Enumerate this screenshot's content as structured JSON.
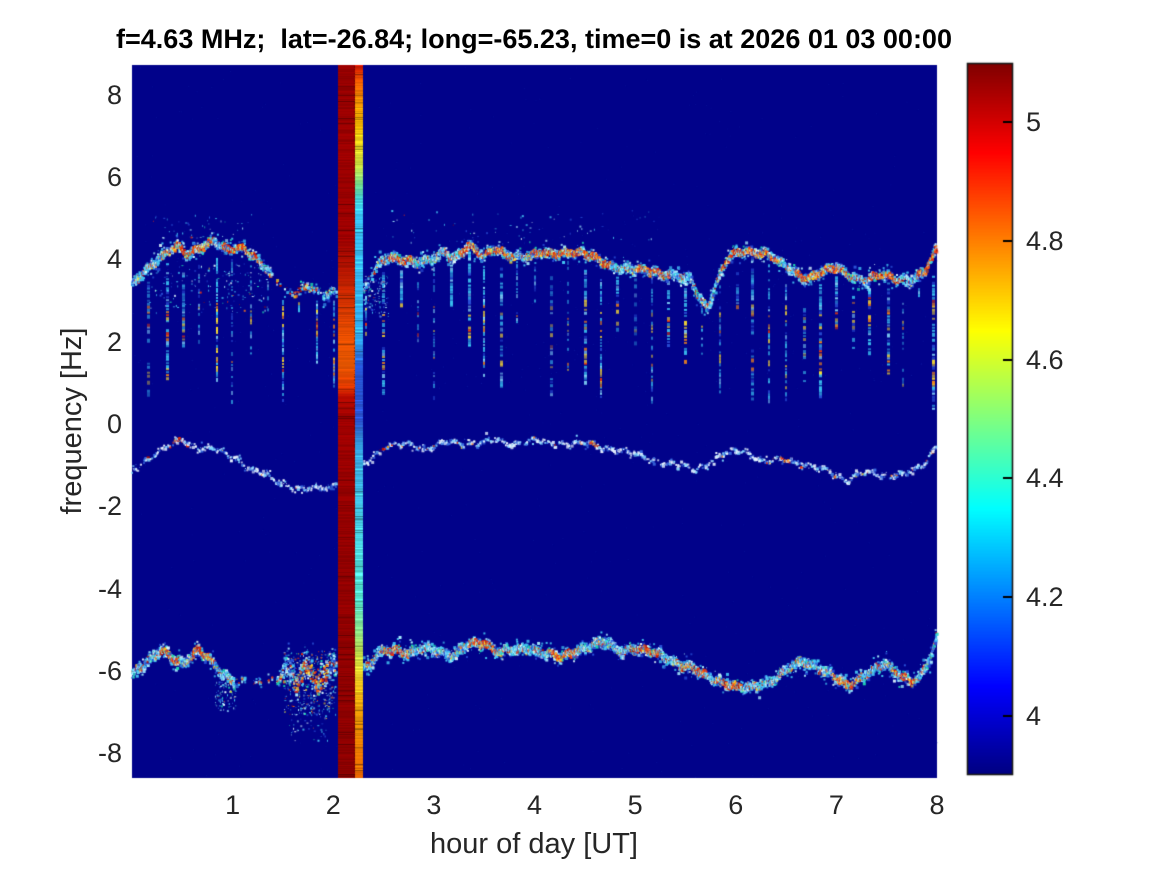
{
  "chart_data": {
    "type": "heatmap",
    "title": "f=4.63 MHz;  lat=-26.84; long=-65.23, time=0 is at 2026 01 03 00:00",
    "xlabel": "hour of day [UT]",
    "ylabel": "frequency [Hz]",
    "xlim": [
      0,
      8
    ],
    "ylim": [
      -8.6,
      8.72
    ],
    "xticks": {
      "values": [
        1,
        2,
        3,
        4,
        5,
        6,
        7,
        8
      ],
      "labels": [
        "1",
        "2",
        "3",
        "4",
        "5",
        "6",
        "7",
        "8"
      ]
    },
    "yticks": {
      "values": [
        8,
        6,
        4,
        2,
        0,
        -2,
        -4,
        -6,
        -8
      ],
      "labels": [
        "8",
        "6",
        "4",
        "2",
        "0",
        "-2",
        "-4",
        "-6",
        "-8"
      ]
    },
    "grid": false,
    "legend": null,
    "colormap": "jet",
    "background_value_color": "#01028A",
    "colorbar": {
      "position": "right",
      "range": [
        3.9,
        5.1
      ],
      "ticks": {
        "values": [
          4,
          4.2,
          4.4,
          4.6,
          4.8,
          5
        ],
        "labels": [
          "4",
          "4.2",
          "4.4",
          "4.6",
          "4.8",
          "5"
        ]
      }
    },
    "palettes": {
      "trace_hot": [
        [
          "#E83010",
          0.38
        ],
        [
          "#FF7718",
          0.28
        ],
        [
          "#B01000",
          0.14
        ],
        [
          "#FFD820",
          0.2
        ]
      ],
      "trace_cool": [
        [
          "#45C8F5",
          0.42
        ],
        [
          "#A8EEFF",
          0.18
        ],
        [
          "#2A52D8",
          0.22
        ],
        [
          "#20E0B0",
          0.07
        ],
        [
          "#E0FAFF",
          0.11
        ]
      ],
      "middle_cool": [
        [
          "#E8F4FF",
          0.45
        ],
        [
          "#3A6CE0",
          0.3
        ],
        [
          "#7FD8FF",
          0.25
        ]
      ]
    },
    "features": {
      "interference_stripe": {
        "x_hours": [
          2.043,
          2.291
        ],
        "wide_part": {
          "x_hours": [
            2.043,
            2.212
          ],
          "stops": [
            [
              0,
              "#960000"
            ],
            [
              0.24,
              "#9E0000"
            ],
            [
              0.285,
              "#B41400"
            ],
            [
              0.33,
              "#D03000"
            ],
            [
              0.375,
              "#E84E00"
            ],
            [
              0.42,
              "#F05A00"
            ],
            [
              0.45,
              "#E43C00"
            ],
            [
              0.465,
              "#B40A00"
            ],
            [
              0.5,
              "#A00000"
            ],
            [
              0.56,
              "#980000"
            ],
            [
              1,
              "#8E0000"
            ]
          ]
        },
        "narrow_part": {
          "x_hours": [
            2.212,
            2.291
          ],
          "stops": [
            [
              0,
              "#C81400"
            ],
            [
              0.021,
              "#F05800"
            ],
            [
              0.049,
              "#F08C00"
            ],
            [
              0.084,
              "#F0B400"
            ],
            [
              0.112,
              "#F0DC20"
            ],
            [
              0.14,
              "#C8E040"
            ],
            [
              0.168,
              "#70DC90"
            ],
            [
              0.189,
              "#40CCD8"
            ],
            [
              0.21,
              "#38C0F0"
            ],
            [
              0.386,
              "#30A8F0"
            ],
            [
              0.421,
              "#2656D4"
            ],
            [
              0.498,
              "#2850C8"
            ],
            [
              0.533,
              "#34A0E0"
            ],
            [
              0.638,
              "#46CCE6"
            ],
            [
              0.75,
              "#52E0C8"
            ],
            [
              0.792,
              "#8CE68C"
            ],
            [
              0.827,
              "#C4DC46"
            ],
            [
              0.863,
              "#ECC61E"
            ],
            [
              0.905,
              "#EE9E06"
            ],
            [
              0.954,
              "#EC8000"
            ],
            [
              1,
              "#E06000"
            ]
          ]
        }
      },
      "upper_trace": {
        "density": 2.7,
        "spread": 0.16,
        "base_hot": 0.32,
        "cool": "trace_cool",
        "hotp": "trace_hot",
        "points": [
          [
            0,
            3.35
          ],
          [
            0.12,
            3.7
          ],
          [
            0.3,
            4.1
          ],
          [
            0.45,
            4.3
          ],
          [
            0.55,
            4.1
          ],
          [
            0.7,
            4.35
          ],
          [
            0.8,
            4.45
          ],
          [
            0.95,
            4.2
          ],
          [
            1.1,
            4.3
          ],
          [
            1.25,
            4.0
          ],
          [
            1.38,
            3.6
          ],
          [
            1.5,
            3.3
          ],
          [
            1.62,
            3.2
          ],
          [
            1.75,
            3.35
          ],
          [
            1.9,
            3.1
          ],
          [
            2.04,
            3.25
          ],
          [
            2.3,
            3.2
          ],
          [
            2.45,
            3.9
          ],
          [
            2.55,
            4.1
          ],
          [
            2.7,
            3.95
          ],
          [
            2.85,
            3.9
          ],
          [
            3.0,
            4.05
          ],
          [
            3.1,
            4.2
          ],
          [
            3.2,
            3.95
          ],
          [
            3.35,
            4.35
          ],
          [
            3.5,
            4.1
          ],
          [
            3.6,
            4.25
          ],
          [
            3.75,
            4.05
          ],
          [
            3.9,
            4.1
          ],
          [
            4.05,
            4.15
          ],
          [
            4.2,
            4.1
          ],
          [
            4.35,
            4.2
          ],
          [
            4.5,
            4.15
          ],
          [
            4.6,
            4.0
          ],
          [
            4.75,
            3.85
          ],
          [
            5.0,
            3.75
          ],
          [
            5.2,
            3.7
          ],
          [
            5.4,
            3.6
          ],
          [
            5.55,
            3.5
          ],
          [
            5.65,
            3.0
          ],
          [
            5.72,
            2.85
          ],
          [
            5.8,
            3.4
          ],
          [
            5.9,
            3.95
          ],
          [
            6.0,
            4.15
          ],
          [
            6.15,
            4.2
          ],
          [
            6.3,
            4.15
          ],
          [
            6.45,
            3.9
          ],
          [
            6.55,
            3.75
          ],
          [
            6.7,
            3.55
          ],
          [
            6.85,
            3.65
          ],
          [
            7.0,
            3.8
          ],
          [
            7.15,
            3.6
          ],
          [
            7.3,
            3.45
          ],
          [
            7.45,
            3.65
          ],
          [
            7.6,
            3.55
          ],
          [
            7.75,
            3.45
          ],
          [
            7.88,
            3.7
          ],
          [
            8,
            4.3
          ]
        ],
        "hot_regions": [
          [
            0.3,
            0.8
          ],
          [
            0.9,
            1.25
          ],
          [
            1.6,
            1.75
          ],
          [
            2.55,
            2.8
          ],
          [
            3.25,
            3.8
          ],
          [
            3.9,
            4.75
          ],
          [
            5.0,
            5.3
          ],
          [
            5.85,
            6.45
          ],
          [
            6.6,
            7.15
          ],
          [
            7.3,
            7.6
          ],
          [
            7.8,
            8.0
          ]
        ],
        "gaps": [
          [
            1.38,
            1.62
          ]
        ],
        "sparse": [
          [
            1.62,
            2.04
          ],
          [
            2.3,
            2.45
          ]
        ],
        "chaos": []
      },
      "middle_trace": {
        "density": 0.5,
        "spread": 0.09,
        "base_hot": 0.08,
        "cool": "middle_cool",
        "hotp": "trace_hot",
        "points": [
          [
            0,
            -1.15
          ],
          [
            0.2,
            -0.75
          ],
          [
            0.35,
            -0.55
          ],
          [
            0.5,
            -0.4
          ],
          [
            0.65,
            -0.55
          ],
          [
            0.8,
            -0.6
          ],
          [
            1.0,
            -0.8
          ],
          [
            1.2,
            -1.1
          ],
          [
            1.4,
            -1.35
          ],
          [
            1.6,
            -1.55
          ],
          [
            1.8,
            -1.6
          ],
          [
            2.0,
            -1.5
          ],
          [
            2.35,
            -0.9
          ],
          [
            2.5,
            -0.55
          ],
          [
            2.7,
            -0.5
          ],
          [
            2.9,
            -0.6
          ],
          [
            3.1,
            -0.45
          ],
          [
            3.3,
            -0.5
          ],
          [
            3.55,
            -0.4
          ],
          [
            3.8,
            -0.5
          ],
          [
            4.0,
            -0.4
          ],
          [
            4.2,
            -0.5
          ],
          [
            4.4,
            -0.45
          ],
          [
            4.6,
            -0.55
          ],
          [
            4.8,
            -0.6
          ],
          [
            5.0,
            -0.75
          ],
          [
            5.2,
            -0.9
          ],
          [
            5.4,
            -1.0
          ],
          [
            5.6,
            -1.1
          ],
          [
            5.9,
            -0.7
          ],
          [
            6.1,
            -0.65
          ],
          [
            6.3,
            -0.95
          ],
          [
            6.5,
            -0.85
          ],
          [
            6.7,
            -1.0
          ],
          [
            6.9,
            -1.15
          ],
          [
            7.1,
            -1.35
          ],
          [
            7.3,
            -1.2
          ],
          [
            7.5,
            -1.25
          ],
          [
            7.7,
            -1.2
          ],
          [
            7.85,
            -1.05
          ],
          [
            8,
            -0.5
          ]
        ],
        "hot_regions": [
          [
            0.38,
            0.5
          ],
          [
            2.45,
            2.6
          ],
          [
            4.55,
            4.65
          ],
          [
            6.45,
            6.55
          ]
        ],
        "gaps": [],
        "sparse": [],
        "chaos": []
      },
      "lower_trace": {
        "density": 2.9,
        "spread": 0.17,
        "base_hot": 0.3,
        "cool": "trace_cool",
        "hotp": "trace_hot",
        "points": [
          [
            0,
            -6.1
          ],
          [
            0.12,
            -5.85
          ],
          [
            0.3,
            -5.45
          ],
          [
            0.42,
            -5.7
          ],
          [
            0.52,
            -5.85
          ],
          [
            0.65,
            -5.5
          ],
          [
            0.75,
            -5.6
          ],
          [
            0.85,
            -5.95
          ],
          [
            1.0,
            -6.3
          ],
          [
            1.45,
            -6.2
          ],
          [
            1.55,
            -5.9
          ],
          [
            1.65,
            -6.3
          ],
          [
            1.75,
            -5.8
          ],
          [
            1.85,
            -6.4
          ],
          [
            1.95,
            -5.9
          ],
          [
            2.35,
            -5.95
          ],
          [
            2.45,
            -5.55
          ],
          [
            2.6,
            -5.45
          ],
          [
            2.75,
            -5.6
          ],
          [
            2.9,
            -5.45
          ],
          [
            3.05,
            -5.5
          ],
          [
            3.2,
            -5.65
          ],
          [
            3.35,
            -5.35
          ],
          [
            3.5,
            -5.3
          ],
          [
            3.65,
            -5.55
          ],
          [
            3.8,
            -5.5
          ],
          [
            3.95,
            -5.45
          ],
          [
            4.1,
            -5.55
          ],
          [
            4.25,
            -5.7
          ],
          [
            4.4,
            -5.5
          ],
          [
            4.55,
            -5.4
          ],
          [
            4.7,
            -5.3
          ],
          [
            4.85,
            -5.5
          ],
          [
            5.0,
            -5.45
          ],
          [
            5.15,
            -5.55
          ],
          [
            5.3,
            -5.65
          ],
          [
            5.45,
            -5.85
          ],
          [
            5.6,
            -6.0
          ],
          [
            5.75,
            -6.15
          ],
          [
            5.9,
            -6.3
          ],
          [
            6.05,
            -6.45
          ],
          [
            6.2,
            -6.35
          ],
          [
            6.35,
            -6.25
          ],
          [
            6.5,
            -6.0
          ],
          [
            6.65,
            -5.75
          ],
          [
            6.8,
            -5.9
          ],
          [
            6.95,
            -6.1
          ],
          [
            7.1,
            -6.35
          ],
          [
            7.25,
            -6.15
          ],
          [
            7.4,
            -5.95
          ],
          [
            7.5,
            -5.85
          ],
          [
            7.65,
            -6.1
          ],
          [
            7.75,
            -6.25
          ],
          [
            7.85,
            -6.1
          ],
          [
            7.95,
            -5.6
          ],
          [
            8,
            -5.15
          ]
        ],
        "hot_regions": [
          [
            0.28,
            0.48
          ],
          [
            0.6,
            0.82
          ],
          [
            1.6,
            1.95
          ],
          [
            2.5,
            2.75
          ],
          [
            3.35,
            3.65
          ],
          [
            4.15,
            4.45
          ],
          [
            4.95,
            5.25
          ],
          [
            5.45,
            5.7
          ],
          [
            5.8,
            6.05
          ],
          [
            6.95,
            7.25
          ],
          [
            7.55,
            7.8
          ]
        ],
        "gaps": [
          [
            1.02,
            1.44
          ]
        ],
        "sparse": [],
        "chaos": [
          [
            1.5,
            2.03
          ]
        ]
      },
      "vertical_streaks": {
        "period_hours": 0.1667,
        "k_range": [
          1,
          47
        ],
        "skip_x_hours": [
          2.02,
          2.31
        ],
        "f_bottom_range": [
          0.45,
          2.1
        ],
        "core_f": [
          2.55,
          1.4
        ],
        "base_color": "#3CC8F4",
        "light_color": "#8CE4FF",
        "blue_color": "#2A52D8",
        "core_colors": [
          "#FFE030",
          "#FF8C14",
          "#FF3C00"
        ],
        "edge_streak": {
          "h": 7.965,
          "f_top": 3.6,
          "f_bottom": 0.35
        }
      },
      "scatter_patches": [
        {
          "h": [
            1.5,
            2.02
          ],
          "f": [
            -7.05,
            -5.5
          ],
          "n": 380,
          "hot": 0.22
        },
        {
          "h": [
            1.55,
            1.95
          ],
          "f": [
            -7.7,
            -7.0
          ],
          "n": 45,
          "hot": 0.08
        },
        {
          "h": [
            0.82,
            1.03
          ],
          "f": [
            -6.95,
            -6.25
          ],
          "n": 90,
          "hot": 0.12
        },
        {
          "h": [
            0.15,
            1.35
          ],
          "f": [
            2.7,
            3.9
          ],
          "n": 150,
          "hot": 0.08
        },
        {
          "h": [
            2.3,
            2.55
          ],
          "f": [
            2.6,
            3.6
          ],
          "n": 110,
          "hot": 0.18
        },
        {
          "h": [
            0.2,
            1.2
          ],
          "f": [
            4.5,
            5.1
          ],
          "n": 45,
          "hot": 0.04
        },
        {
          "h": [
            2.5,
            5.2
          ],
          "f": [
            4.4,
            5.2
          ],
          "n": 70,
          "hot": 0.04
        }
      ]
    }
  }
}
